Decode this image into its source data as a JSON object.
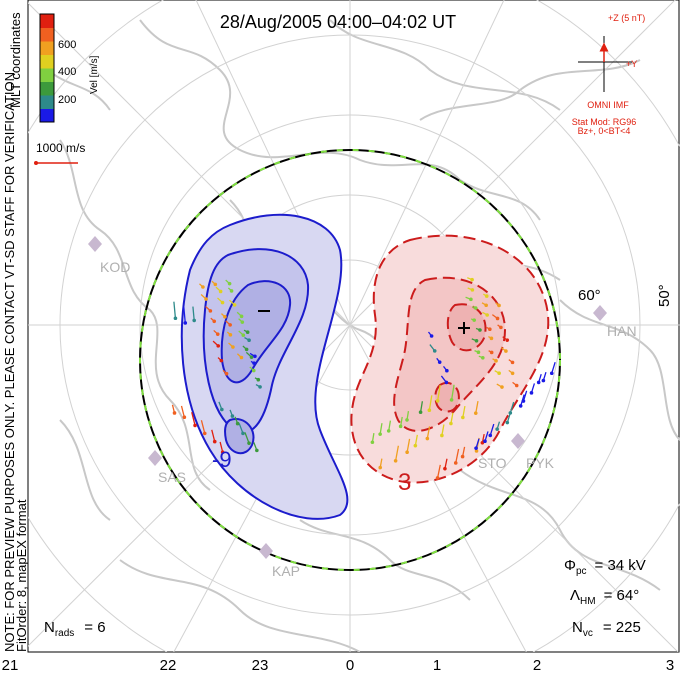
{
  "title": "28/Aug/2005 04:00–04:02 UT",
  "side_note": "NOTE: FOR PREVIEW PURPOSES ONLY. PLEASE CONTACT VT-SD STAFF FOR VERIFICATION.",
  "fit_order": "FitOrder: 8, mapEX format",
  "coords": "MLT coordinates",
  "colorbar": {
    "label": "Vel [m/s]",
    "ticks": [
      "600",
      "400",
      "200"
    ],
    "colors": [
      "#1a1ae6",
      "#2d8a8a",
      "#3c9a3c",
      "#80d040",
      "#e0d020",
      "#f0a020",
      "#f06020",
      "#e02010"
    ]
  },
  "ref_vector": "1000 m/s",
  "imf": {
    "z_label": "+Z (5 nT)",
    "y_label": "+Y",
    "omni": "OMNI IMF",
    "model": "Stat Mod: RG96",
    "cond": "Bz+, 0<BT<4"
  },
  "stations": [
    "KOD",
    "SAS",
    "KAP",
    "STO",
    "PYK",
    "HAN"
  ],
  "lat_labels": [
    "60°",
    "50°"
  ],
  "mlt_labels": [
    "21",
    "22",
    "23",
    "0",
    "1",
    "2",
    "3"
  ],
  "contours": {
    "neg_label": "-9",
    "pos_label": "3"
  },
  "stats": {
    "phi_sym": "Φ",
    "phi_sub": "pc",
    "phi_val": "= 34 kV",
    "lam_sym": "Λ",
    "lam_sub": "HM",
    "lam_val": "= 64°",
    "nvc_sym": "N",
    "nvc_sub": "vc",
    "nvc_val": "= 225",
    "nrad_sym": "N",
    "nrad_sub": "rads",
    "nrad_val": "= 6"
  }
}
